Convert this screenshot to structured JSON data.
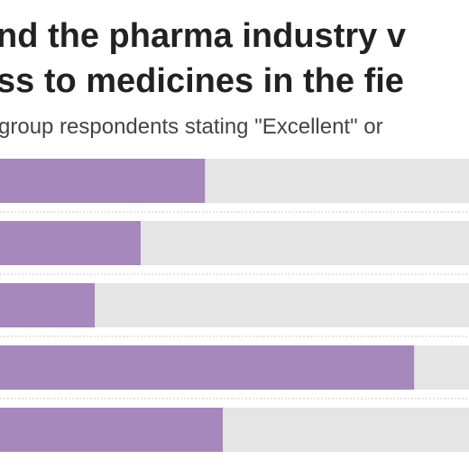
{
  "header": {
    "title_line_1": "nd the pharma industry v",
    "title_line_2": "ss to medicines in the fie",
    "subtitle": "group respondents stating \"Excellent\" or"
  },
  "colors": {
    "bar_fill": "#a688bc",
    "track": "#e5e5e5",
    "divider": "#c8c8c8",
    "title": "#222222",
    "subtitle": "#444444"
  },
  "chart_data": {
    "type": "bar",
    "orientation": "horizontal",
    "title": "nd the pharma industry v\nss to medicines in the fie",
    "subtitle": "group respondents stating \"Excellent\" or",
    "categories": [
      "",
      "",
      "",
      "",
      ""
    ],
    "values": [
      43.7,
      30.0,
      20.2,
      88.3,
      47.5
    ],
    "xlim": [
      0,
      100
    ],
    "grid": false,
    "legend": "none"
  }
}
